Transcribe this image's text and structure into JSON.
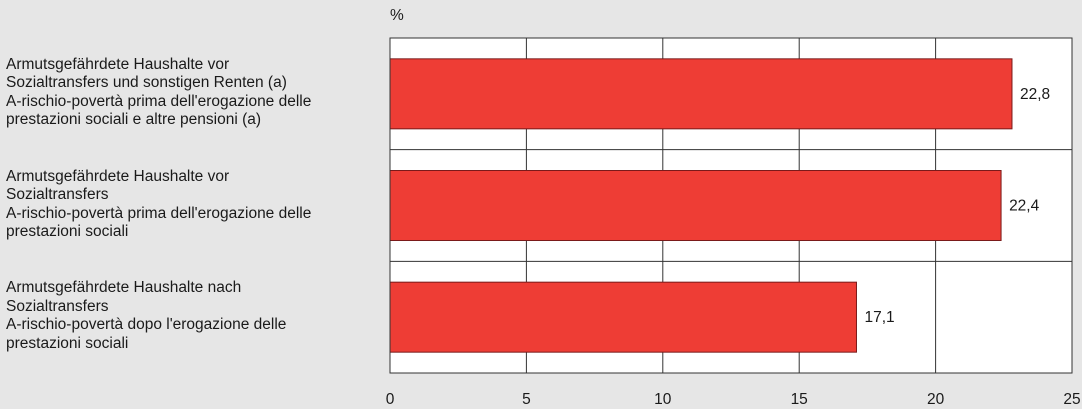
{
  "chart_data": {
    "type": "bar",
    "orientation": "horizontal",
    "unit": "%",
    "categories": [
      "Armutsgefährdete Haushalte vor\nSozialtransfers und sonstigen Renten (a)\nA-rischio-povertà prima dell'erogazione delle\nprestazioni sociali e altre pensioni (a)",
      "Armutsgefährdete Haushalte vor\nSozialtransfers\nA-rischio-povertà prima dell'erogazione delle\nprestazioni sociali",
      "Armutsgefährdete Haushalte nach\nSozialtransfers\nA-rischio-povertà dopo l'erogazione delle\nprestazioni sociali"
    ],
    "values": [
      22.8,
      22.4,
      17.1
    ],
    "value_labels": [
      "22,8",
      "22,4",
      "17,1"
    ],
    "xlim": [
      0,
      25
    ],
    "xticks": [
      0,
      5,
      10,
      15,
      20,
      25
    ],
    "xtick_labels": [
      "0",
      "5",
      "10",
      "15",
      "20",
      "25"
    ],
    "grid": true,
    "bar_color": "#ee3d35",
    "bar_edge_color": "#7a1a1a",
    "plot_background": "#ffffff",
    "page_background": "#e6e6e6"
  }
}
